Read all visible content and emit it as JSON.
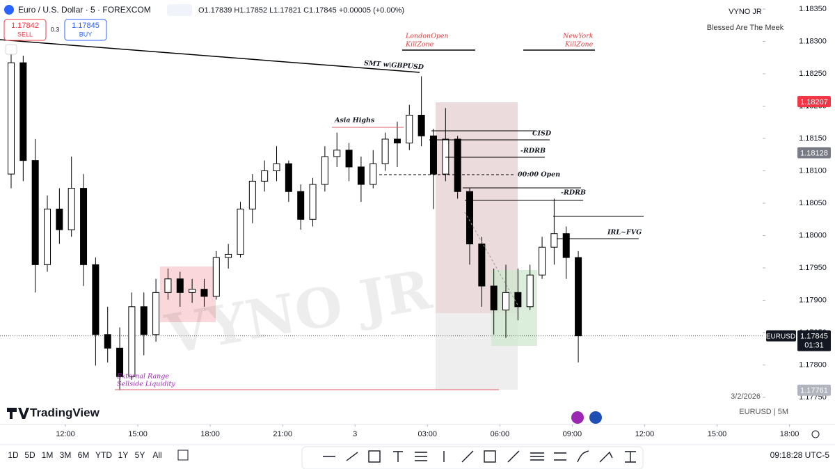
{
  "header": {
    "title": "Euro / U.S. Dollar · 5 · FOREXCOM",
    "ohlc": "O1.17839 H1.17852 L1.17821 C1.17845 +0.00005 (+0.00%)",
    "sell_price": "1.17842",
    "sell": "SELL",
    "spread": "0.3",
    "buy_price": "1.17845",
    "buy": "BUY"
  },
  "branding": {
    "name": "VYNO JR",
    "tagline": "Blessed Are The Meek",
    "watermark": "VYNO JR",
    "logo": "TradingView",
    "date": "3/2/2026",
    "symbol_interval": "EURUSD | 5M"
  },
  "annotations": {
    "london_1": "LondonOpen",
    "london_2": "KillZone",
    "newyork_1": "NewYork",
    "newyork_2": "KillZone",
    "smt": "SMT w\\GBPUSD",
    "asia": "Asia Highs",
    "cisd": "CISD",
    "rdrb_1": "-RDRB",
    "open": "00:00 Open",
    "rdrb_2": "-RDRB",
    "irl": "IRL~FVG",
    "ext_1": "External Range",
    "ext_2": "Sellside Liquidity"
  },
  "toolbar": {
    "ranges": [
      "1D",
      "5D",
      "1M",
      "3M",
      "6M",
      "YTD",
      "1Y",
      "5Y",
      "All"
    ],
    "clock": "09:18:28 UTC-5"
  },
  "chart_data": {
    "type": "candlestick",
    "x": [
      -2.25,
      -1.75,
      -1.25,
      -0.75,
      -0.25,
      0.25,
      0.75,
      1.25,
      1.75,
      2.25,
      2.75,
      3.25,
      3.75,
      4.25,
      4.75,
      5.25,
      5.75,
      6.25,
      6.75,
      7.25,
      7.75,
      8.25,
      8.75,
      9.25,
      9.75,
      10.25,
      10.75,
      11.25,
      11.75,
      12.25,
      12.75,
      13.25,
      13.75,
      14.25,
      14.75,
      15.25,
      15.75,
      16.25,
      16.75,
      17.25,
      17.75,
      18.25,
      18.75,
      19.25,
      19.75,
      20.25,
      20.75,
      21.25
    ],
    "open": [
      1.18095,
      1.18267,
      1.18116,
      1.17955,
      1.18041,
      1.18009,
      1.18073,
      1.17955,
      1.17847,
      1.17826,
      1.17782,
      1.1789,
      1.17847,
      1.17912,
      1.17933,
      1.17912,
      1.17917,
      1.17906,
      1.17966,
      1.17971,
      1.18041,
      1.18084,
      1.181,
      1.18111,
      1.18068,
      1.18025,
      1.18079,
      1.18122,
      1.18132,
      1.18106,
      1.18079,
      1.18111,
      1.18149,
      1.18143,
      1.18186,
      1.18154,
      1.18095,
      1.18149,
      1.18068,
      1.17987,
      1.17922,
      1.17885,
      1.17912,
      1.1789,
      1.17939,
      1.17982,
      1.18003,
      1.17966
    ],
    "high": [
      1.18294,
      1.18278,
      1.18149,
      1.18062,
      1.18073,
      1.18122,
      1.18095,
      1.17966,
      1.1789,
      1.17858,
      1.17912,
      1.17912,
      1.17933,
      1.17949,
      1.17944,
      1.17933,
      1.17933,
      1.17976,
      1.17987,
      1.18052,
      1.18095,
      1.18116,
      1.18138,
      1.18116,
      1.18079,
      1.18089,
      1.18138,
      1.18159,
      1.18143,
      1.18122,
      1.18132,
      1.18159,
      1.18176,
      1.18202,
      1.18246,
      1.18165,
      1.18197,
      1.18154,
      1.18073,
      1.17998,
      1.17949,
      1.17955,
      1.17949,
      1.17955,
      1.17998,
      1.18057,
      1.18014,
      1.17976
    ],
    "low": [
      1.18073,
      1.18084,
      1.17912,
      1.17944,
      1.17987,
      1.17998,
      1.17922,
      1.17799,
      1.17804,
      1.17761,
      1.17777,
      1.17815,
      1.17836,
      1.17901,
      1.1789,
      1.17896,
      1.1789,
      1.17901,
      1.17949,
      1.17966,
      1.18019,
      1.18068,
      1.18084,
      1.18052,
      1.18009,
      1.18014,
      1.18068,
      1.18106,
      1.18084,
      1.18052,
      1.18073,
      1.181,
      1.18106,
      1.18132,
      1.18138,
      1.18041,
      1.18084,
      1.18057,
      1.17955,
      1.1789,
      1.17847,
      1.17842,
      1.17869,
      1.17885,
      1.17933,
      1.17955,
      1.17933,
      1.17804
    ],
    "close": [
      1.18267,
      1.18116,
      1.17955,
      1.18041,
      1.18009,
      1.18073,
      1.17955,
      1.17847,
      1.17826,
      1.17782,
      1.1789,
      1.17847,
      1.17912,
      1.17933,
      1.17912,
      1.17917,
      1.17906,
      1.17966,
      1.17971,
      1.18041,
      1.18084,
      1.181,
      1.18111,
      1.18068,
      1.18025,
      1.18079,
      1.18122,
      1.18132,
      1.18106,
      1.18079,
      1.18111,
      1.18149,
      1.18143,
      1.18186,
      1.18154,
      1.18095,
      1.18149,
      1.18068,
      1.17987,
      1.17922,
      1.17885,
      1.17912,
      1.1789,
      1.17939,
      1.17982,
      1.18003,
      1.17966,
      1.17845
    ],
    "up_color": "#ffffff",
    "down_color": "#000000",
    "xlim": [
      -2.711,
      31.31
    ],
    "xticks": [
      {
        "value": 0,
        "label": "12:00"
      },
      {
        "value": 3,
        "label": "15:00"
      },
      {
        "value": 6,
        "label": "18:00"
      },
      {
        "value": 9,
        "label": "21:00"
      },
      {
        "value": 12,
        "label": "3"
      },
      {
        "value": 15,
        "label": "03:00"
      },
      {
        "value": 18,
        "label": "06:00"
      },
      {
        "value": 21,
        "label": "09:00"
      },
      {
        "value": 24,
        "label": "12:00"
      },
      {
        "value": 27,
        "label": "15:00"
      },
      {
        "value": 30,
        "label": "18:00"
      }
    ],
    "ylim": [
      1.1775,
      1.1835
    ],
    "yticks": [
      {
        "value": 1.1835,
        "label": "1.18350"
      },
      {
        "value": 1.183,
        "label": "1.18300"
      },
      {
        "value": 1.1825,
        "label": "1.18250"
      },
      {
        "value": 1.182,
        "label": "1.18200"
      },
      {
        "value": 1.1815,
        "label": "1.18150"
      },
      {
        "value": 1.181,
        "label": "1.18100"
      },
      {
        "value": 1.1805,
        "label": "1.18050"
      },
      {
        "value": 1.18,
        "label": "1.18000"
      },
      {
        "value": 1.1795,
        "label": "1.17950"
      },
      {
        "value": 1.179,
        "label": "1.17900"
      },
      {
        "value": 1.1785,
        "label": "1.17850"
      },
      {
        "value": 1.178,
        "label": "1.17800"
      },
      {
        "value": 1.1775,
        "label": "1.17750"
      }
    ],
    "grid": false,
    "price_markers": [
      {
        "value": 1.18207,
        "color": "#f23645"
      },
      {
        "value": 1.18128,
        "color": "#787b86"
      },
      {
        "value": 1.17761,
        "color": "#b2b5be"
      }
    ],
    "last_price": {
      "symbol": "EURUSD",
      "value": 1.17845,
      "countdown": "01:31"
    }
  }
}
